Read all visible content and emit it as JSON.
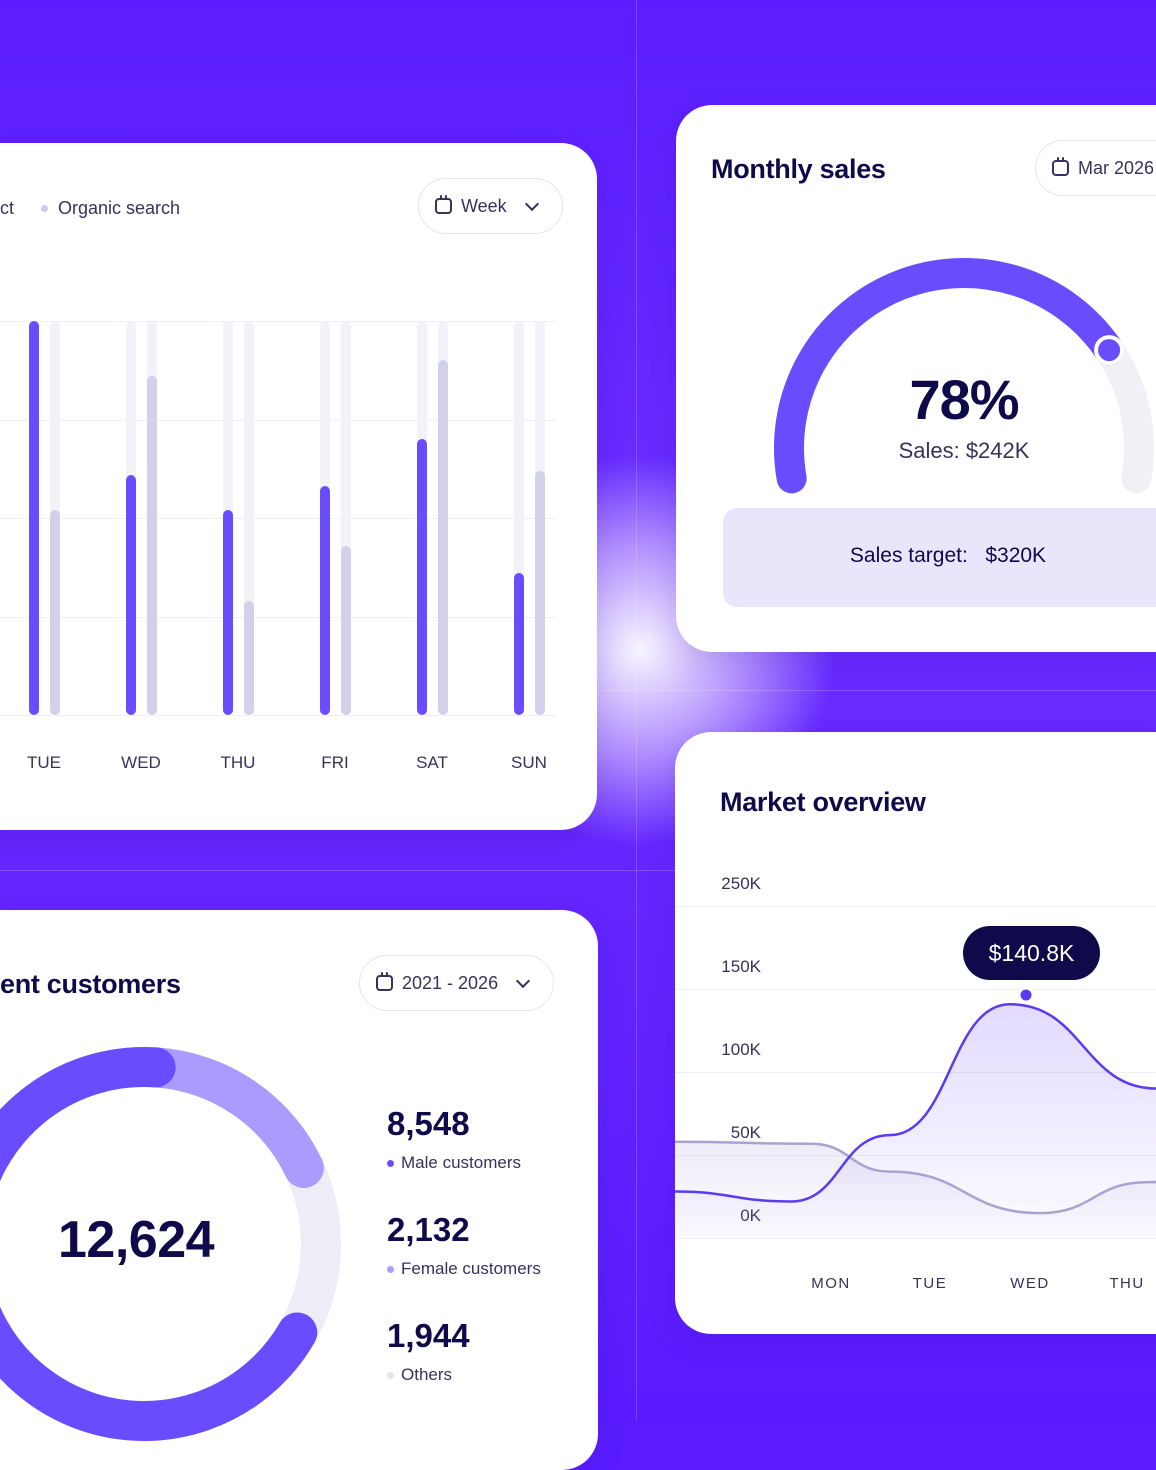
{
  "traffic_card": {
    "legend": [
      {
        "label": "ct",
        "color": "#6a4cff"
      },
      {
        "label": "Organic search",
        "color": "#cfcde6"
      }
    ],
    "filter_label": "Week",
    "chart_data": {
      "type": "bar",
      "categories": [
        "TUE",
        "WED",
        "THU",
        "FRI",
        "SAT",
        "SUN"
      ],
      "ylim": [
        0,
        100
      ],
      "series": [
        {
          "values": [
            100,
            61,
            52,
            58,
            70,
            36
          ],
          "color": "#6a4cff"
        },
        {
          "values": [
            52,
            86,
            29,
            43,
            90,
            62
          ],
          "color": "#d3d1ea"
        }
      ]
    }
  },
  "monthly_sales": {
    "title": "Monthly sales",
    "filter_label": "Mar 2026",
    "percent_value": 78,
    "percent_label": "78%",
    "sales_label": "Sales: $242K",
    "target_label": "Sales target:",
    "target_value": "$320K"
  },
  "market_overview": {
    "title": "Market overview",
    "tooltip": "$140.8K",
    "chart_data": {
      "type": "area",
      "y_tick_labels": [
        "250K",
        "150K",
        "100K",
        "50K",
        "0K"
      ],
      "x_tick_labels": [
        "MON",
        "TUE",
        "WED",
        "THU"
      ],
      "series": [
        {
          "x": [
            "MON",
            "TUE",
            "WED",
            "THU"
          ],
          "values": [
            22,
            62,
            140.8,
            90
          ],
          "color": "#5b3af0"
        },
        {
          "x": [
            "MON",
            "TUE",
            "WED",
            "THU"
          ],
          "values": [
            58,
            40,
            15,
            30
          ],
          "color": "#a9a3d2"
        }
      ]
    }
  },
  "customers_card": {
    "title": "ent customers",
    "filter_label": "2021 - 2026",
    "total": "12,624",
    "chart_data": {
      "type": "pie",
      "labels": [
        "Male customers",
        "Female customers",
        "Others"
      ],
      "values": [
        8548,
        2132,
        1944
      ],
      "colors": [
        "#6a4cff",
        "#a99bff",
        "#eeecf6"
      ]
    },
    "stats": [
      {
        "value": "8,548",
        "label": "Male customers",
        "color": "#6a4cff"
      },
      {
        "value": "2,132",
        "label": "Female customers",
        "color": "#a99bff"
      },
      {
        "value": "1,944",
        "label": "Others",
        "color": "#e6e4f0"
      }
    ]
  }
}
